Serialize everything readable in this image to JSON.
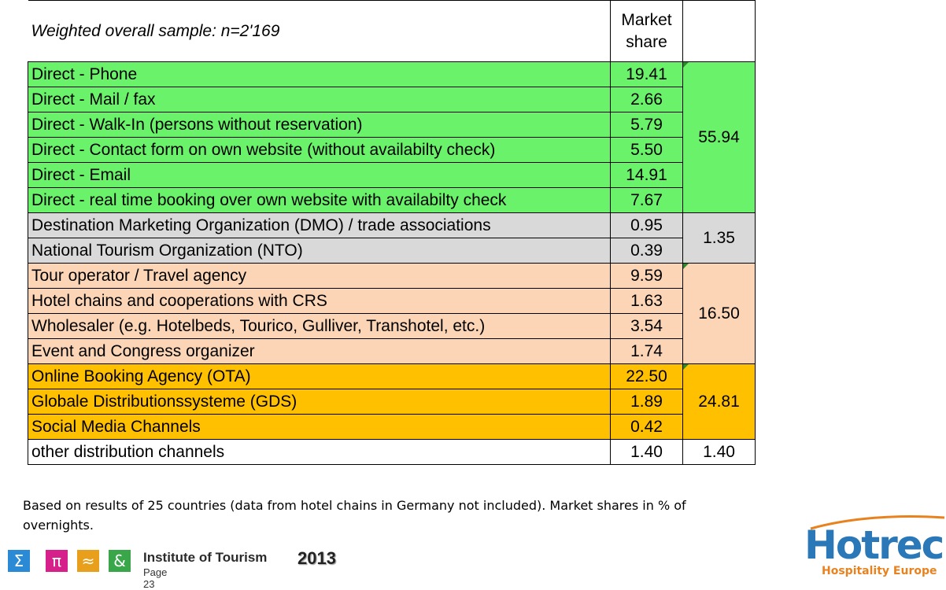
{
  "table": {
    "header_label": "Weighted overall sample: n=2'169",
    "header_value": "Market\nshare",
    "rows": [
      {
        "label": "Direct - Phone",
        "value": "19.41"
      },
      {
        "label": "Direct - Mail / fax",
        "value": "2.66"
      },
      {
        "label": "Direct - Walk-In (persons without reservation)",
        "value": "5.79"
      },
      {
        "label": "Direct - Contact form on own website (without availabilty check)",
        "value": "5.50"
      },
      {
        "label": "Direct - Email",
        "value": "14.91"
      },
      {
        "label": "Direct - real time booking over own website with availabilty check",
        "value": "7.67"
      },
      {
        "label": "Destination Marketing Organization (DMO) / trade associations",
        "value": "0.95"
      },
      {
        "label": "National Tourism Organization (NTO)",
        "value": "0.39"
      },
      {
        "label": "Tour operator / Travel agency",
        "value": "9.59"
      },
      {
        "label": "Hotel chains and cooperations with CRS",
        "value": "1.63"
      },
      {
        "label": "Wholesaler (e.g. Hotelbeds, Tourico, Gulliver, Transhotel, etc.)",
        "value": "3.54"
      },
      {
        "label": "Event and Congress organizer",
        "value": "1.74"
      },
      {
        "label": "Online Booking Agency (OTA)",
        "value": "22.50"
      },
      {
        "label": "Globale Distributionssysteme (GDS)",
        "value": "1.89"
      },
      {
        "label": "Social Media Channels",
        "value": "0.42"
      },
      {
        "label": "other distribution channels",
        "value": "1.40"
      }
    ],
    "groups": [
      {
        "total": "55.94",
        "color": "#6af36a"
      },
      {
        "total": "1.35",
        "color": "#d9d9d9"
      },
      {
        "total": "16.50",
        "color": "#fbd5b5"
      },
      {
        "total": "24.81",
        "color": "#ffc000"
      },
      {
        "total": "1.40",
        "color": "#ffffff"
      }
    ]
  },
  "note": "Based on results of 25 countries (data from hotel chains in Germany not included). Market shares in % of overnights.",
  "footer": {
    "symbols": [
      "Σ",
      "π",
      "≈",
      "&"
    ],
    "symbol_colors": [
      "#2a8ad6",
      "#d6218a",
      "#e8a01c",
      "#3aa64a"
    ],
    "institute": "Institute of Tourism",
    "year": "2013",
    "page": "Page 23"
  },
  "logo": {
    "name": "Hotrec",
    "tagline": "Hospitality Europe"
  }
}
